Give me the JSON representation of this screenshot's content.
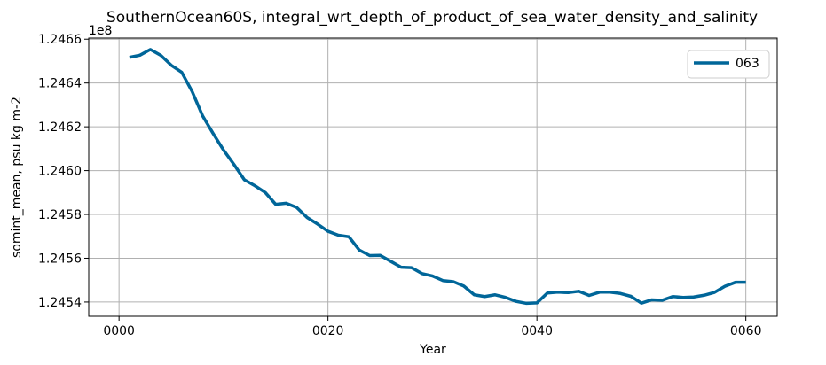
{
  "chart_data": {
    "type": "line",
    "title": "SouthernOcean60S, integral_wrt_depth_of_product_of_sea_water_density_and_salinity",
    "xlabel": "Year",
    "ylabel": "somint_mean, psu kg m-2",
    "y_offset_label": "1e8",
    "xlim": [
      -2.9,
      63
    ],
    "ylim": [
      1.245335,
      1.246605
    ],
    "x_ticks": [
      0,
      20,
      40,
      60
    ],
    "x_tick_labels": [
      "0000",
      "0020",
      "0040",
      "0060"
    ],
    "y_ticks": [
      1.2454,
      1.2456,
      1.2458,
      1.246,
      1.2462,
      1.2464,
      1.2466
    ],
    "y_tick_labels": [
      "1.2454",
      "1.2456",
      "1.2458",
      "1.2460",
      "1.2462",
      "1.2464",
      "1.2466"
    ],
    "grid": true,
    "legend_position": "upper right",
    "series": [
      {
        "name": "063",
        "color": "#006699",
        "x": [
          1,
          2,
          3,
          4,
          5,
          6,
          7,
          8,
          9,
          10,
          11,
          12,
          13,
          14,
          15,
          16,
          17,
          18,
          19,
          20,
          21,
          22,
          23,
          24,
          25,
          26,
          27,
          28,
          29,
          30,
          31,
          32,
          33,
          34,
          35,
          36,
          37,
          38,
          39,
          40,
          41,
          42,
          43,
          44,
          45,
          46,
          47,
          48,
          49,
          50,
          51,
          52,
          53,
          54,
          55,
          56,
          57,
          58,
          59,
          60
        ],
        "y": [
          1.246517,
          1.246527,
          1.246553,
          1.246526,
          1.246481,
          1.246449,
          1.246361,
          1.24625,
          1.24617,
          1.246094,
          1.246028,
          1.245958,
          1.245931,
          1.2459,
          1.245846,
          1.245851,
          1.245832,
          1.245786,
          1.245756,
          1.245723,
          1.245705,
          1.245698,
          1.245637,
          1.245612,
          1.245613,
          1.245586,
          1.245559,
          1.245557,
          1.24553,
          1.245519,
          1.245498,
          1.245493,
          1.245473,
          1.245433,
          1.245425,
          1.245433,
          1.245421,
          1.245403,
          1.245394,
          1.245396,
          1.245441,
          1.245445,
          1.245443,
          1.245449,
          1.24543,
          1.245445,
          1.245445,
          1.245439,
          1.245426,
          1.245395,
          1.24541,
          1.245408,
          1.245425,
          1.245421,
          1.245423,
          1.245431,
          1.245444,
          1.245472,
          1.24549,
          1.24549
        ]
      }
    ]
  }
}
